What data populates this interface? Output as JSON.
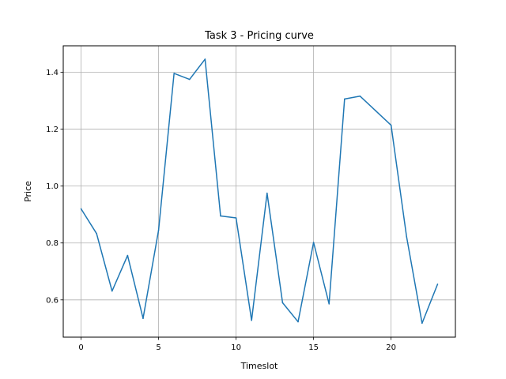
{
  "chart_data": {
    "type": "line",
    "title": "Task 3 - Pricing curve",
    "xlabel": "Timeslot",
    "ylabel": "Price",
    "xlim": [
      -1.15,
      24.15
    ],
    "ylim": [
      0.469,
      1.493
    ],
    "xticks": [
      0,
      5,
      10,
      15,
      20
    ],
    "yticks": [
      0.6,
      0.8,
      1.0,
      1.2,
      1.4
    ],
    "xtick_labels": [
      "0",
      "5",
      "10",
      "15",
      "20"
    ],
    "ytick_labels": [
      "0.6",
      "0.8",
      "1.0",
      "1.2",
      "1.4"
    ],
    "grid": true,
    "line_color": "#1f77b4",
    "series": [
      {
        "x": [
          0,
          1,
          2,
          3,
          4,
          5,
          6,
          7,
          8,
          9,
          10,
          11,
          12,
          13,
          14,
          15,
          16,
          17,
          18,
          19,
          20,
          21,
          22,
          23
        ],
        "values": [
          0.92,
          0.833,
          0.631,
          0.756,
          0.535,
          0.845,
          1.396,
          1.375,
          1.446,
          0.895,
          0.888,
          0.528,
          0.975,
          0.59,
          0.523,
          0.802,
          0.586,
          1.306,
          1.316,
          1.265,
          1.214,
          0.822,
          0.518,
          0.655
        ]
      }
    ]
  }
}
